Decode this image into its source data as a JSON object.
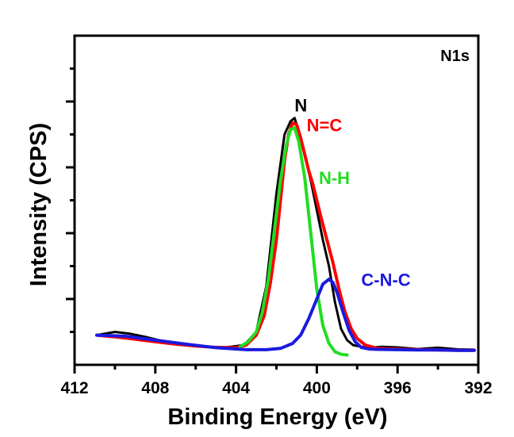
{
  "chart_data": {
    "type": "line",
    "title": "",
    "panel_label": "N1s",
    "xlabel": "Binding Energy (eV)",
    "ylabel": "Intensity (CPS)",
    "xlim": [
      412,
      392
    ],
    "ylim": [
      0,
      100
    ],
    "x_ticks": [
      412,
      408,
      404,
      400,
      396,
      392
    ],
    "x_tick_labels": [
      "412",
      "408",
      "404",
      "400",
      "396",
      "392"
    ],
    "y_ticks": [
      20,
      40,
      60,
      80
    ],
    "grid": false,
    "annotations": [
      {
        "text": "N",
        "x": 401.1,
        "y": 77,
        "color": "#000000"
      },
      {
        "text": "N=C",
        "x": 400.5,
        "y": 71,
        "color": "#ff0000"
      },
      {
        "text": "N-H",
        "x": 399.9,
        "y": 55,
        "color": "#22dd22"
      },
      {
        "text": "C-N-C",
        "x": 397.8,
        "y": 24,
        "color": "#1a1adf"
      }
    ],
    "series": [
      {
        "color": "#000000",
        "x": [
          410.9,
          410.0,
          409.3,
          408.5,
          407.5,
          406.5,
          405.5,
          404.5,
          403.6,
          403.0,
          402.5,
          402.0,
          401.6,
          401.3,
          401.1,
          400.9,
          400.6,
          400.3,
          400.0,
          399.7,
          399.4,
          399.1,
          398.8,
          398.5,
          398.2,
          397.8,
          397.3,
          396.8,
          396.0,
          395.0,
          394.0,
          393.0,
          392.2
        ],
        "y": [
          9,
          10,
          9.5,
          8.5,
          7,
          6,
          5.5,
          5.3,
          6,
          10,
          24,
          52,
          70,
          74,
          75,
          71,
          64,
          56,
          47,
          38,
          30,
          19,
          11,
          7.5,
          6,
          5.5,
          5.2,
          5.5,
          5.3,
          4.8,
          5.2,
          4.7,
          4.6
        ]
      },
      {
        "color": "#ff0000",
        "x": [
          410.9,
          410.0,
          409.0,
          408.0,
          407.0,
          406.0,
          405.0,
          404.0,
          403.5,
          403.0,
          402.6,
          402.3,
          402.0,
          401.8,
          401.6,
          401.4,
          401.2,
          401.0,
          400.8,
          400.6,
          400.4,
          400.2,
          400.0,
          399.8,
          399.5,
          399.2,
          398.9,
          398.6,
          398.3,
          398.0,
          397.6,
          397.0,
          396.0,
          395.0,
          394.0,
          393.0,
          392.2
        ],
        "y": [
          9,
          8.5,
          7.8,
          7.0,
          6.3,
          5.7,
          5.3,
          5.2,
          6,
          9,
          15,
          25,
          38,
          50,
          62,
          70,
          73.5,
          73,
          69,
          64,
          59,
          55,
          50,
          45,
          38,
          31,
          23,
          16,
          11,
          8,
          6,
          5,
          4.8,
          4.6,
          4.5,
          4.4,
          4.4
        ]
      },
      {
        "color": "#22dd22",
        "x": [
          403.8,
          403.4,
          403.0,
          402.7,
          402.4,
          402.1,
          401.8,
          401.5,
          401.3,
          401.1,
          400.9,
          400.6,
          400.3,
          400.0,
          399.7,
          399.4,
          399.1,
          398.8,
          398.5
        ],
        "y": [
          5.5,
          7,
          10,
          16,
          26,
          41,
          56,
          67,
          71.5,
          72,
          68,
          57,
          40,
          23,
          12,
          6.5,
          4,
          3.2,
          3
        ]
      },
      {
        "color": "#1a1adf",
        "x": [
          410.9,
          409.5,
          408.0,
          406.5,
          405.0,
          403.5,
          402.5,
          401.8,
          401.2,
          400.8,
          400.4,
          400.0,
          399.7,
          399.4,
          399.2,
          399.0,
          398.7,
          398.4,
          398.1,
          397.8,
          397.4,
          397.0,
          396.0,
          395.0,
          394.0,
          393.0,
          392.2
        ],
        "y": [
          9,
          8.7,
          7.5,
          6.3,
          5.2,
          4.6,
          4.6,
          5,
          6.5,
          9,
          14,
          20,
          24.5,
          26,
          25,
          22,
          16,
          10.5,
          7,
          5.3,
          4.8,
          4.7,
          4.6,
          4.5,
          4.5,
          4.4,
          4.4
        ]
      }
    ]
  }
}
